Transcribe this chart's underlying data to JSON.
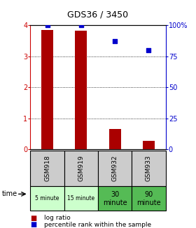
{
  "title": "GDS36 / 3450",
  "samples": [
    "GSM918",
    "GSM919",
    "GSM932",
    "GSM933"
  ],
  "time_labels": [
    "5 minute",
    "15 minute",
    "30\nminute",
    "90\nminute"
  ],
  "time_colors_light": "#ccffcc",
  "time_colors_dark": "#55bb55",
  "time_color_map": [
    0,
    0,
    1,
    1
  ],
  "log_ratio": [
    3.85,
    3.82,
    0.65,
    0.27
  ],
  "percentile_rank": [
    100,
    100,
    87,
    80
  ],
  "bar_color": "#aa0000",
  "dot_color": "#0000cc",
  "left_axis_color": "#cc0000",
  "right_axis_color": "#0000cc",
  "ylim_left": [
    0,
    4
  ],
  "ylim_right": [
    0,
    100
  ],
  "yticks_left": [
    0,
    1,
    2,
    3,
    4
  ],
  "ytick_right_labels": [
    "0",
    "25",
    "50",
    "75",
    "100%"
  ],
  "sample_bg": "#cccccc",
  "bar_width": 0.35,
  "legend_red_label": "log ratio",
  "legend_blue_label": "percentile rank within the sample",
  "title_fontsize": 9,
  "tick_fontsize": 7,
  "sample_fontsize": 6.5,
  "time_fontsize_small": 5.5,
  "time_fontsize_large": 7
}
